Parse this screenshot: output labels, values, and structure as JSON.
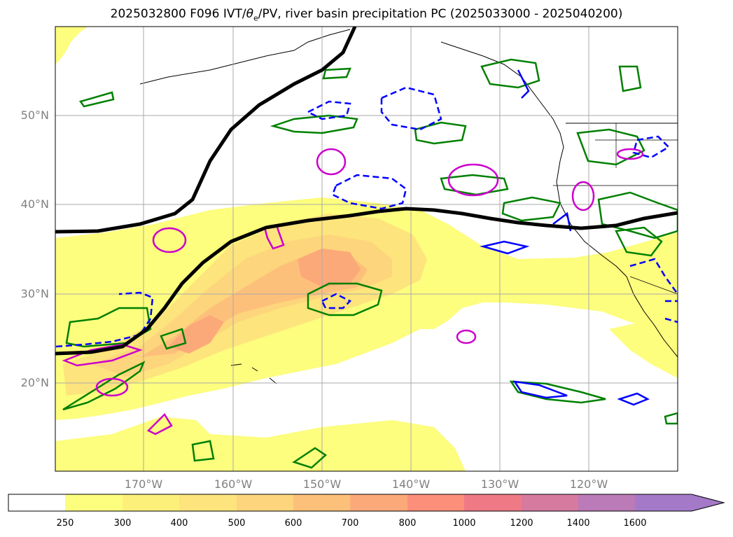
{
  "title": {
    "prefix": "2025032800 F096 IVT/",
    "theta": "θ",
    "theta_sub": "e",
    "suffix": "/PV, river basin precipitation PC (2025033000 - 2025040200)"
  },
  "axes": {
    "lat_labels": [
      "50°N",
      "40°N",
      "30°N",
      "20°N"
    ],
    "lon_labels": [
      "170°W",
      "160°W",
      "150°W",
      "140°W",
      "130°W",
      "120°W"
    ]
  },
  "colorbar": {
    "levels": [
      "250",
      "300",
      "400",
      "500",
      "600",
      "700",
      "800",
      "1000",
      "1200",
      "1400",
      "1600"
    ],
    "colors": [
      "#ffffff",
      "#fdfd7e",
      "#fdf07a",
      "#fde47c",
      "#fdd57c",
      "#fdc07a",
      "#fca97a",
      "#fc8f7a",
      "#ef7a86",
      "#d67aa0",
      "#bb7ab8",
      "#a47ac8"
    ]
  },
  "colors": {
    "theta_e": "#000000",
    "pv_green": "#008000",
    "precip_blue": "#0000ff",
    "magenta": "#cc00cc",
    "grid": "#aaaaaa",
    "label": "#808080"
  }
}
